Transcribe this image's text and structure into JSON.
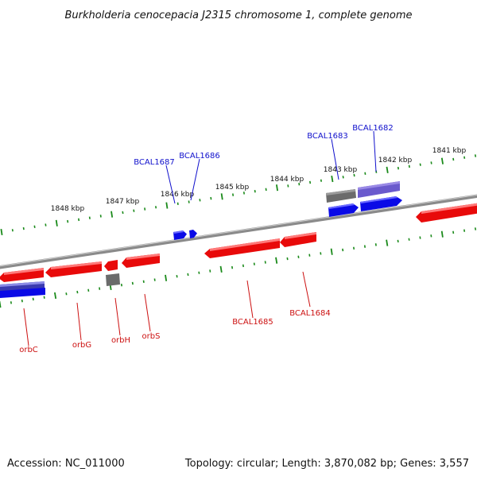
{
  "title": "Burkholderia cenocepacia J2315 chromosome 1, complete genome",
  "footer": {
    "accession": "Accession: NC_011000",
    "summary": "Topology: circular; Length: 3,870,082 bp; Genes: 3,557"
  },
  "colors": {
    "forward_gene": "#0a0ae6",
    "reverse_gene": "#e80a0a",
    "rna_gene": "#6b6b6b",
    "pseudo_gene": "#6a5acd",
    "backbone": "#8a8a8a",
    "tick": "#1a8a1a",
    "forward_label": "#1010cc",
    "reverse_label": "#cc1010"
  },
  "scale_labels": [
    "1848 kbp",
    "1847 kbp",
    "1846 kbp",
    "1845 kbp",
    "1844 kbp",
    "1843 kbp",
    "1842 kbp",
    "1841 kbp"
  ],
  "forward_labels": [
    "BCAL1687",
    "BCAL1686",
    "BCAL1683",
    "BCAL1682"
  ],
  "reverse_labels": [
    "orbC",
    "orbG",
    "orbH",
    "orbS",
    "BCAL1685",
    "BCAL1684"
  ]
}
